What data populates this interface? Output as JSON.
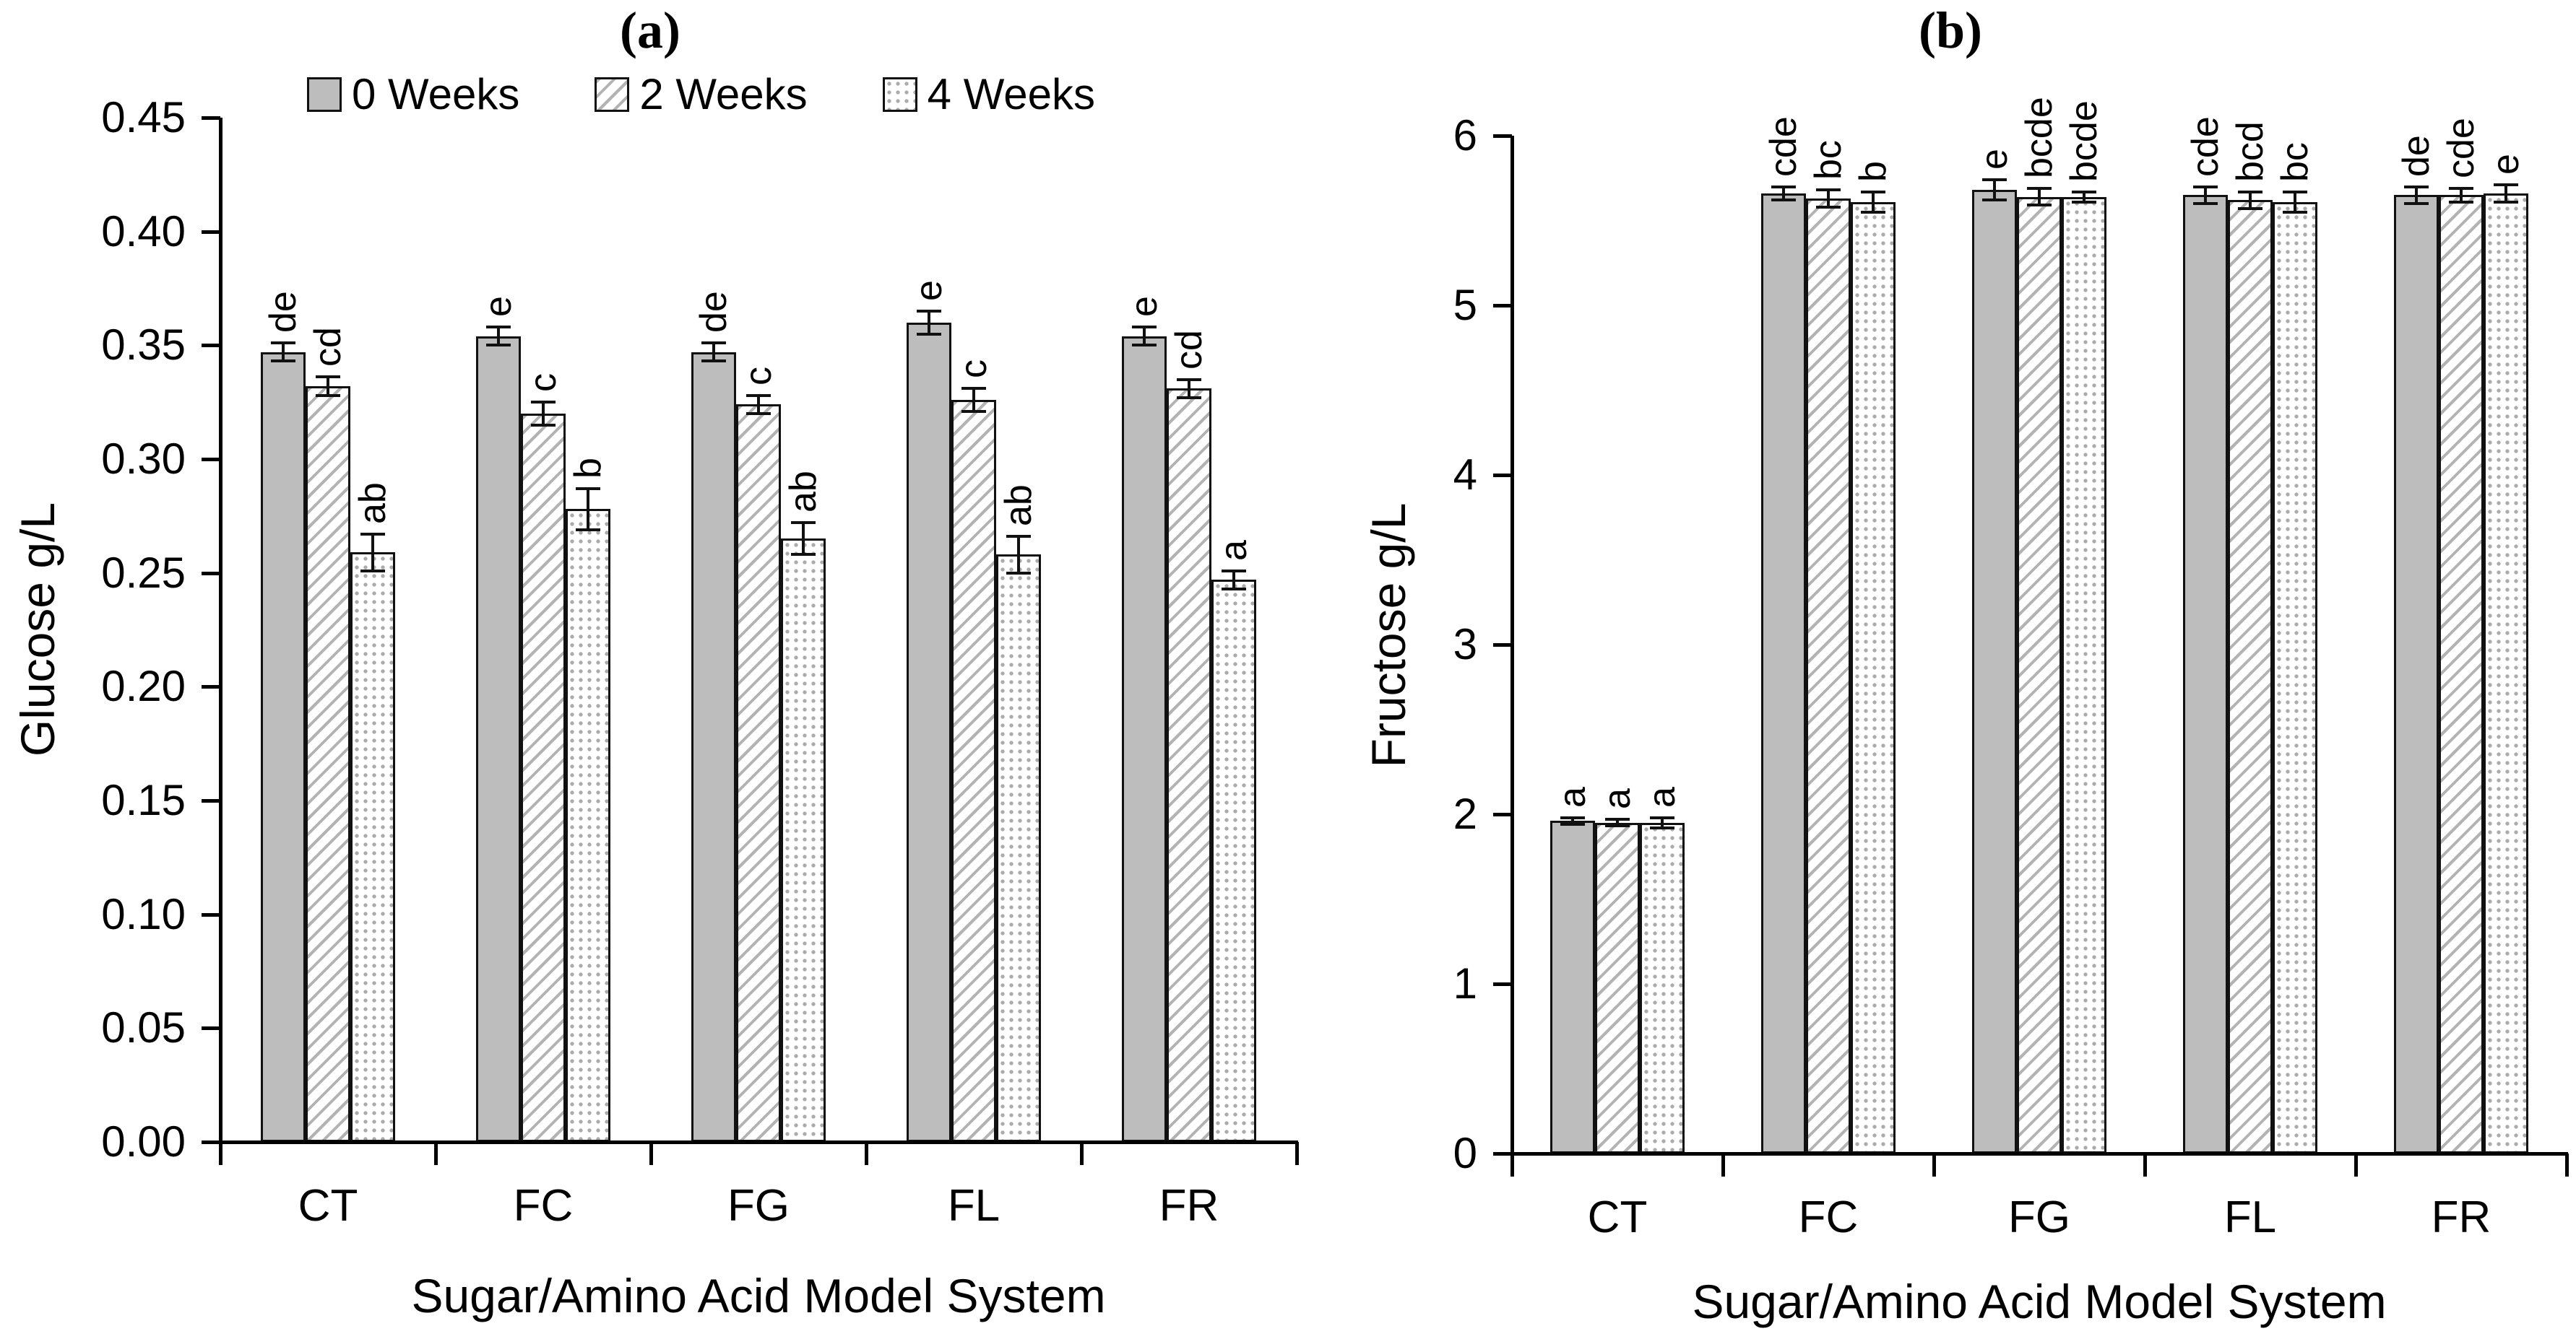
{
  "style": {
    "background": "#ffffff",
    "bar_fill_gray": "#bdbdbd",
    "pattern_gray": "#b3b3b3",
    "bar_border": "#111111",
    "axis_color": "#000000",
    "text_color": "#000000"
  },
  "chart_data": [
    {
      "type": "bar",
      "title": "(a)",
      "ylabel": "Glucose g/L",
      "xlabel": "Sugar/Amino Acid Model System",
      "ylim": [
        0,
        0.45
      ],
      "ytick_step": 0.05,
      "ytick_labels": [
        "0.00",
        "0.05",
        "0.10",
        "0.15",
        "0.20",
        "0.25",
        "0.30",
        "0.35",
        "0.40",
        "0.45"
      ],
      "grid": false,
      "legend_position": "top",
      "categories": [
        "CT",
        "FC",
        "FG",
        "FL",
        "FR"
      ],
      "series": [
        {
          "name": "0 Weeks",
          "pattern": "solid",
          "values": [
            0.347,
            0.354,
            0.347,
            0.36,
            0.354
          ],
          "errors": [
            0.004,
            0.004,
            0.004,
            0.005,
            0.004
          ],
          "letters": [
            "de",
            "e",
            "de",
            "e",
            "e"
          ]
        },
        {
          "name": "2 Weeks",
          "pattern": "diagonal",
          "values": [
            0.332,
            0.32,
            0.324,
            0.326,
            0.331
          ],
          "errors": [
            0.004,
            0.005,
            0.004,
            0.005,
            0.004
          ],
          "letters": [
            "cd",
            "c",
            "c",
            "c",
            "cd"
          ]
        },
        {
          "name": "4 Weeks",
          "pattern": "dots",
          "values": [
            0.259,
            0.278,
            0.265,
            0.258,
            0.247
          ],
          "errors": [
            0.008,
            0.009,
            0.007,
            0.008,
            0.004
          ],
          "letters": [
            "ab",
            "b",
            "ab",
            "ab",
            "a"
          ]
        }
      ]
    },
    {
      "type": "bar",
      "title": "(b)",
      "ylabel": "Fructose g/L",
      "xlabel": "Sugar/Amino Acid Model System",
      "ylim": [
        0,
        6
      ],
      "ytick_step": 1,
      "ytick_labels": [
        "0",
        "1",
        "2",
        "3",
        "4",
        "5",
        "6"
      ],
      "grid": false,
      "legend_position": "none",
      "categories": [
        "CT",
        "FC",
        "FG",
        "FL",
        "FR"
      ],
      "series": [
        {
          "name": "0 Weeks",
          "pattern": "solid",
          "values": [
            1.96,
            5.66,
            5.68,
            5.65,
            5.65
          ],
          "errors": [
            0.02,
            0.04,
            0.06,
            0.05,
            0.05
          ],
          "letters": [
            "a",
            "cde",
            "e",
            "cde",
            "de"
          ]
        },
        {
          "name": "2 Weeks",
          "pattern": "diagonal",
          "values": [
            1.95,
            5.63,
            5.64,
            5.62,
            5.65
          ],
          "errors": [
            0.02,
            0.05,
            0.05,
            0.05,
            0.04
          ],
          "letters": [
            "a",
            "bc",
            "bcde",
            "bcd",
            "cde"
          ]
        },
        {
          "name": "4 Weeks",
          "pattern": "dots",
          "values": [
            1.95,
            5.61,
            5.64,
            5.61,
            5.66
          ],
          "errors": [
            0.03,
            0.06,
            0.03,
            0.06,
            0.05
          ],
          "letters": [
            "a",
            "b",
            "bcde",
            "bc",
            "e"
          ]
        }
      ]
    }
  ]
}
